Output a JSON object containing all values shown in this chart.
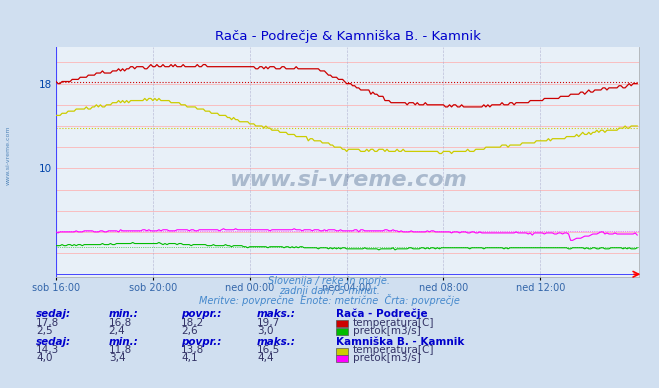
{
  "title": "Rača - Podrečje & Kamniška B. - Kamnik",
  "title_color": "#0000cc",
  "bg_color": "#d0dff0",
  "plot_bg_color": "#e8f0f8",
  "xlabel_ticks": [
    "sob 16:00",
    "sob 20:00",
    "ned 00:00",
    "ned 04:00",
    "ned 08:00",
    "ned 12:00"
  ],
  "ylim": [
    -0.3,
    21.5
  ],
  "xlim": [
    0,
    289
  ],
  "tick_positions": [
    0,
    48,
    96,
    144,
    192,
    240
  ],
  "watermark": "www.si-vreme.com",
  "subtitle1": "Slovenija / reke in morje.",
  "subtitle2": "zadnji dan / 5 minut.",
  "subtitle3": "Meritve: povprečne  Enote: metrične  Črta: povprečje",
  "subtitle_color": "#4488cc",
  "station1_name": "Rača - Podrečje",
  "station1_temp_color": "#cc0000",
  "station1_flow_color": "#00bb00",
  "station1_temp_avg": 18.2,
  "station1_flow_avg": 2.6,
  "station2_name": "Kamniška B. - Kamnik",
  "station2_temp_color": "#cccc00",
  "station2_flow_color": "#ff00ff",
  "station2_temp_avg": 13.8,
  "station2_flow_avg": 4.1,
  "table_header_color": "#0000cc",
  "station1_sedaj": "17,8",
  "station1_min": "16,8",
  "station1_povpr": "18,2",
  "station1_maks": "19,7",
  "station1_flow_sedaj": "2,5",
  "station1_flow_min": "2,4",
  "station1_flow_povpr": "2,6",
  "station1_flow_maks": "3,0",
  "station2_sedaj": "14,3",
  "station2_min": "11,8",
  "station2_povpr": "13,8",
  "station2_maks": "16,5",
  "station2_flow_sedaj": "4,0",
  "station2_flow_min": "3,4",
  "station2_flow_povpr": "4,1",
  "station2_flow_maks": "4,4"
}
